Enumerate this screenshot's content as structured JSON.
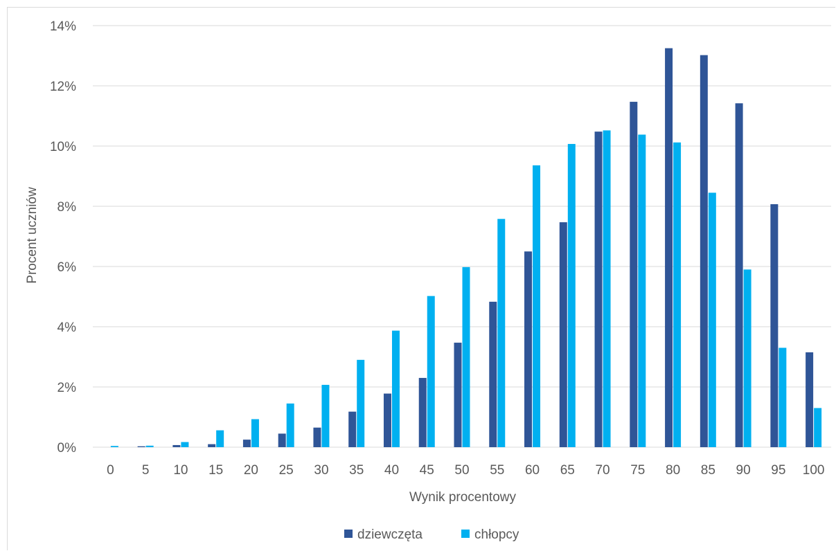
{
  "chart_data": {
    "type": "bar",
    "title": "",
    "xlabel": "Wynik procentowy",
    "ylabel": "Procent uczniów",
    "categories": [
      "0",
      "5",
      "10",
      "15",
      "20",
      "25",
      "30",
      "35",
      "40",
      "45",
      "50",
      "55",
      "60",
      "65",
      "70",
      "75",
      "80",
      "85",
      "90",
      "95",
      "100"
    ],
    "ylim": [
      0,
      14
    ],
    "yticks": [
      0,
      2,
      4,
      6,
      8,
      10,
      12,
      14
    ],
    "ytick_labels": [
      "0%",
      "2%",
      "4%",
      "6%",
      "8%",
      "10%",
      "12%",
      "14%"
    ],
    "grid": true,
    "legend_position": "bottom",
    "series": [
      {
        "name": "dziewczęta",
        "color": "#2f5597",
        "values": [
          0.0,
          0.03,
          0.07,
          0.1,
          0.25,
          0.45,
          0.65,
          1.18,
          1.78,
          2.3,
          3.47,
          4.83,
          6.5,
          7.47,
          10.48,
          11.47,
          13.25,
          13.02,
          11.42,
          8.07,
          3.15
        ]
      },
      {
        "name": "chłopcy",
        "color": "#00b0f0",
        "values": [
          0.04,
          0.05,
          0.17,
          0.56,
          0.93,
          1.45,
          2.07,
          2.9,
          3.87,
          5.02,
          5.98,
          7.58,
          9.36,
          10.07,
          10.52,
          10.38,
          10.12,
          8.45,
          5.9,
          3.3,
          1.3
        ]
      }
    ]
  }
}
